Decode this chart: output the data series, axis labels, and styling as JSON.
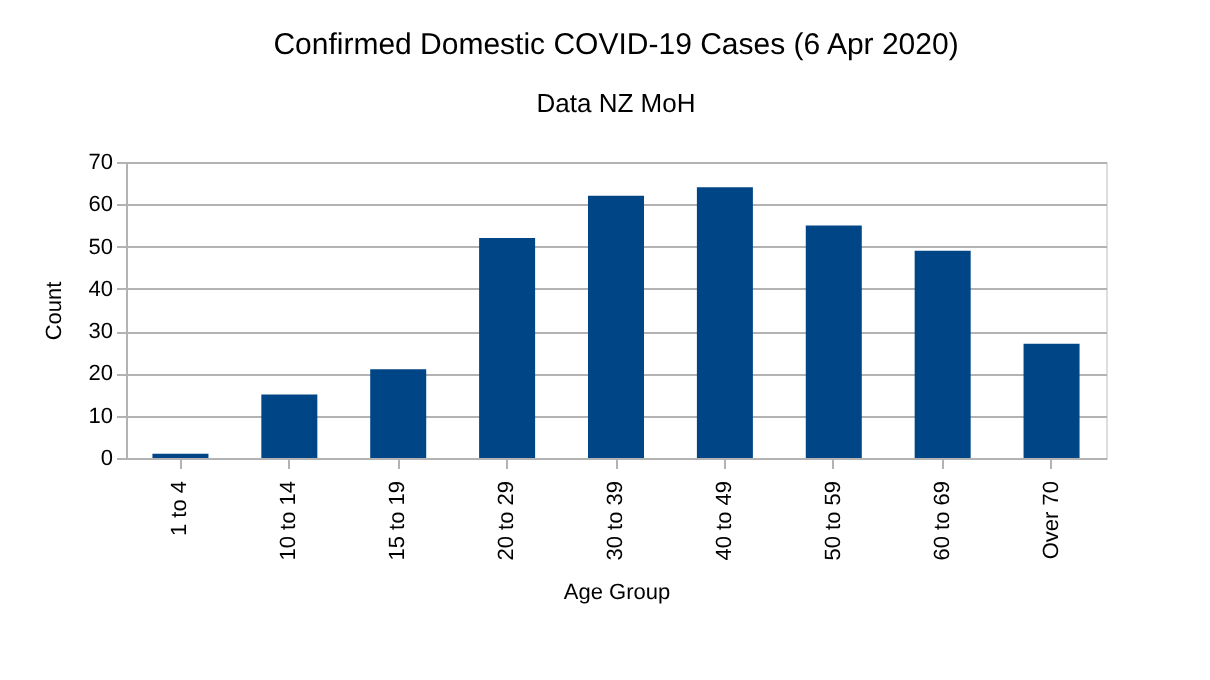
{
  "chart_data": {
    "type": "bar",
    "title": "Confirmed Domestic COVID-19 Cases (6 Apr 2020)",
    "subtitle": "Data NZ MoH",
    "xlabel": "Age Group",
    "ylabel": "Count",
    "categories": [
      "1 to 4",
      "10 to 14",
      "15 to 19",
      "20 to 29",
      "30 to 39",
      "40 to 49",
      "50 to 59",
      "60 to 69",
      "Over 70"
    ],
    "values": [
      1,
      15,
      21,
      52,
      62,
      64,
      55,
      49,
      27
    ],
    "color": "#004586",
    "ylim": [
      0,
      70
    ],
    "yticks": [
      0,
      10,
      20,
      30,
      40,
      50,
      60,
      70
    ],
    "grid": "y"
  }
}
